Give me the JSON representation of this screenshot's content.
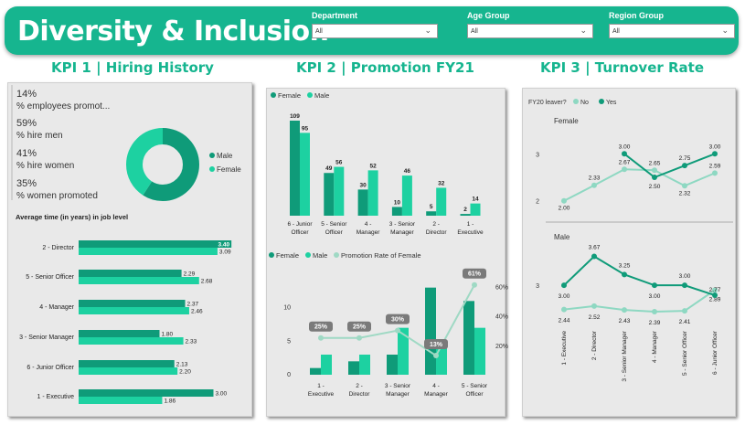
{
  "header": {
    "title": "Diversity & Inclusion",
    "slicers": [
      {
        "label": "Department",
        "value": "All"
      },
      {
        "label": "Age Group",
        "value": "All"
      },
      {
        "label": "Region Group",
        "value": "All"
      }
    ]
  },
  "kpi_titles": [
    "KPI 1 | Hiring History",
    "KPI 2 | Promotion FY21",
    "KPI 3 | Turnover Rate"
  ],
  "cards": [
    {
      "value": "14%",
      "label": "% employees promot..."
    },
    {
      "value": "59%",
      "label": "% hire men"
    },
    {
      "value": "41%",
      "label": "% hire women"
    },
    {
      "value": "35%",
      "label": "% women promoted"
    }
  ],
  "colors": {
    "female": "#0f9b79",
    "male": "#1dd1a1",
    "light": "#8ed8c2",
    "rate": "#9fd9c4",
    "label_bg": "#7a7a7a"
  },
  "chart_data": [
    {
      "type": "pie",
      "subtype": "donut",
      "categories": [
        "Male",
        "Female"
      ],
      "values": [
        59,
        41
      ],
      "legend": "right"
    },
    {
      "type": "bar",
      "orientation": "horizontal",
      "title": "Average time (in years) in job level",
      "categories": [
        "2 - Director",
        "5 - Senior Officer",
        "4 - Manager",
        "3 - Senior Manager",
        "6 - Junior Officer",
        "1 - Executive"
      ],
      "series": [
        {
          "values": [
            3.4,
            2.29,
            2.37,
            1.8,
            2.13,
            3.0
          ]
        },
        {
          "values": [
            3.09,
            2.68,
            2.46,
            2.33,
            2.2,
            1.86
          ]
        }
      ],
      "xlim": [
        0,
        3.6
      ]
    },
    {
      "type": "bar",
      "categories": [
        "6 - Junior Officer",
        "5 - Senior Officer",
        "4 - Manager",
        "3 - Senior Manager",
        "2 - Director",
        "1 - Executive"
      ],
      "series": [
        {
          "name": "Female",
          "values": [
            109,
            49,
            30,
            10,
            5,
            2
          ]
        },
        {
          "name": "Male",
          "values": [
            95,
            56,
            52,
            46,
            32,
            14
          ]
        }
      ],
      "legend": "top-left",
      "ylim": [
        0,
        115
      ]
    },
    {
      "type": "bar",
      "categories": [
        "1 - Executive",
        "2 - Director",
        "3 - Senior Manager",
        "4 - Manager",
        "5 - Senior Officer"
      ],
      "series": [
        {
          "name": "Female",
          "values": [
            1,
            2,
            3,
            13,
            11
          ]
        },
        {
          "name": "Male",
          "values": [
            3,
            3,
            7,
            4,
            7
          ]
        },
        {
          "name": "Promotion Rate of Female",
          "type": "line",
          "values": [
            25,
            25,
            30,
            13,
            61
          ],
          "labels": [
            "25%",
            "25%",
            "30%",
            "13%",
            "61%"
          ]
        }
      ],
      "y_ticks": [
        "0",
        "5",
        "10"
      ],
      "y2_ticks": [
        "20%",
        "40%",
        "60%"
      ],
      "ylim": [
        0,
        15
      ],
      "y2lim": [
        0,
        72
      ],
      "legend": "top-left"
    },
    {
      "type": "line",
      "legend_title": "FY20 leaver?",
      "legend": "top-left",
      "categories": [
        "1 - Executive",
        "2 - Director",
        "3 - Senior Manager",
        "4 - Manager",
        "5 - Senior Officer",
        "6 - Junior Officer"
      ],
      "panels": [
        {
          "title": "Female",
          "y_ticks": [
            "2",
            "3"
          ],
          "ylim": [
            1.8,
            3.2
          ],
          "series": [
            {
              "name": "No",
              "values": [
                2.0,
                2.33,
                2.67,
                2.65,
                2.32,
                2.59
              ]
            },
            {
              "name": "Yes",
              "values": [
                null,
                null,
                3.0,
                2.5,
                2.75,
                3.0
              ]
            }
          ]
        },
        {
          "title": "Male",
          "y_ticks": [
            "3"
          ],
          "ylim": [
            2.2,
            3.85
          ],
          "series": [
            {
              "name": "No",
              "values": [
                2.44,
                2.52,
                2.43,
                2.39,
                2.41,
                2.89
              ]
            },
            {
              "name": "Yes",
              "values": [
                3.0,
                3.67,
                3.25,
                3.0,
                3.0,
                2.77
              ]
            }
          ]
        }
      ]
    }
  ]
}
